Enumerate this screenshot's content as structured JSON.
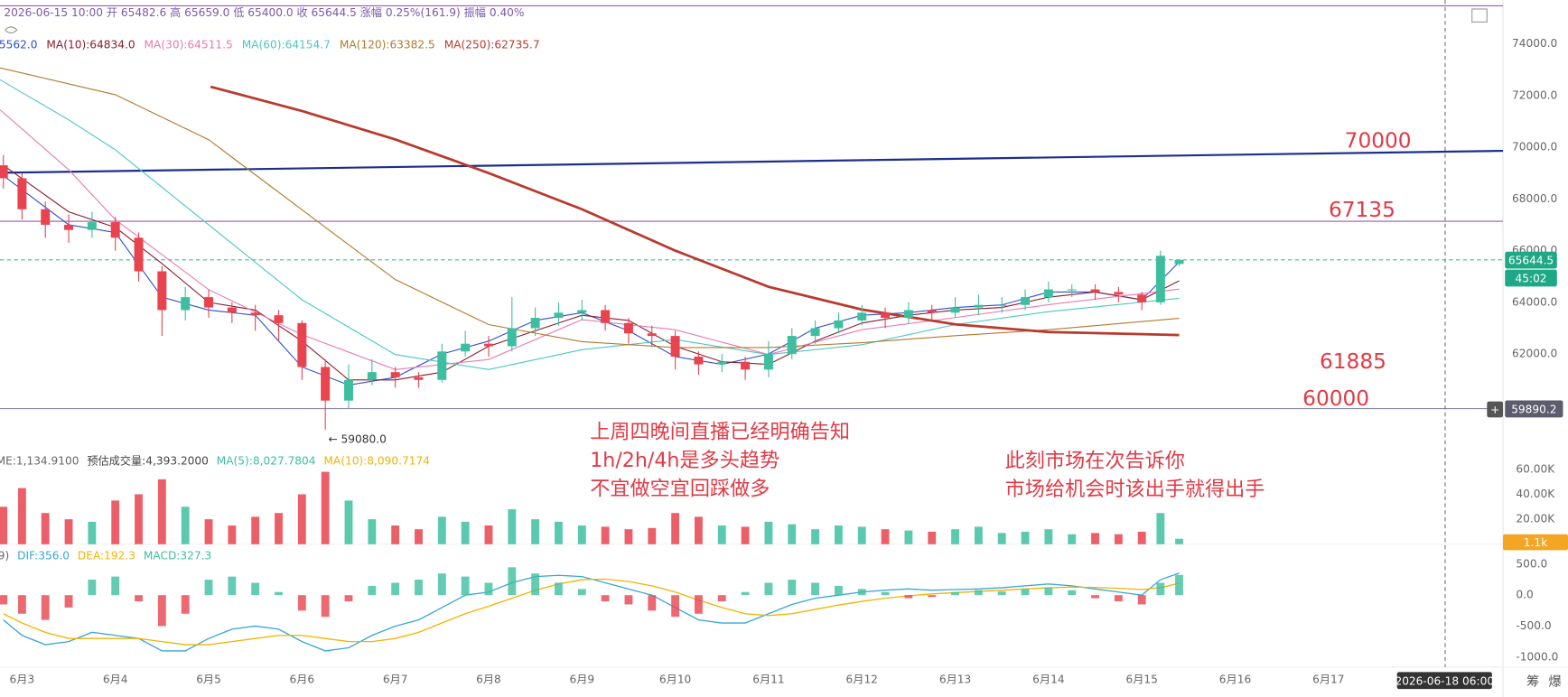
{
  "chart_data": {
    "type": "candlestick",
    "info": "2026-06-15 10:00 开 65482.6 高 65659.0 低 65400.0 收 65644.5 涨幅 0.25%(161.9) 振幅 0.40%",
    "xlim": [
      2.764,
      18.87
    ],
    "xticks": [
      {
        "value": 3,
        "label": "6月3"
      },
      {
        "value": 4,
        "label": "6月4"
      },
      {
        "value": 5,
        "label": "6月5"
      },
      {
        "value": 6,
        "label": "6月6"
      },
      {
        "value": 7,
        "label": "6月7"
      },
      {
        "value": 8,
        "label": "6月8"
      },
      {
        "value": 9,
        "label": "6月9"
      },
      {
        "value": 10,
        "label": "6月10"
      },
      {
        "value": 11,
        "label": "6月11"
      },
      {
        "value": 12,
        "label": "6月12"
      },
      {
        "value": 13,
        "label": "6月13"
      },
      {
        "value": 14,
        "label": "6月14"
      },
      {
        "value": 15,
        "label": "6月15"
      },
      {
        "value": 16,
        "label": "6月16"
      },
      {
        "value": 17,
        "label": "6月17"
      }
    ],
    "ylim": [
      58700,
      75500
    ],
    "yticks": [
      {
        "value": 62000,
        "label": "62000.0"
      },
      {
        "value": 64000,
        "label": "64000.0"
      },
      {
        "value": 66000,
        "label": "66000.0"
      },
      {
        "value": 68000,
        "label": "68000.0"
      },
      {
        "value": 70000,
        "label": "70000.0"
      },
      {
        "value": 72000,
        "label": "72000.0"
      },
      {
        "value": 74000,
        "label": "74000.0"
      }
    ],
    "up_color": "#3dbf9f",
    "down_color": "#e8434f",
    "candles": {
      "x": [
        2.8,
        3,
        3.25,
        3.5,
        3.75,
        4,
        4.25,
        4.5,
        4.75,
        5,
        5.25,
        5.5,
        5.75,
        6,
        6.25,
        6.5,
        6.75,
        7,
        7.25,
        7.5,
        7.75,
        8,
        8.25,
        8.5,
        8.75,
        9,
        9.25,
        9.5,
        9.75,
        10,
        10.25,
        10.5,
        10.75,
        11,
        11.25,
        11.5,
        11.75,
        12,
        12.25,
        12.5,
        12.75,
        13,
        13.25,
        13.5,
        13.75,
        14,
        14.25,
        14.5,
        14.75,
        15,
        15.2,
        15.4
      ],
      "open": [
        69300,
        68800,
        67600,
        67000,
        66800,
        67100,
        66500,
        65200,
        63700,
        64200,
        63800,
        63600,
        63500,
        63200,
        61500,
        60200,
        61000,
        61300,
        61100,
        61000,
        62100,
        62400,
        62300,
        63000,
        63400,
        63600,
        63700,
        63200,
        62800,
        62700,
        61900,
        61600,
        61700,
        61400,
        62000,
        62700,
        63000,
        63300,
        63600,
        63400,
        63700,
        63600,
        63800,
        63900,
        63900,
        64200,
        64500,
        64500,
        64400,
        64300,
        64000,
        65482.6
      ],
      "high": [
        69700,
        69000,
        67900,
        67400,
        67500,
        67300,
        66700,
        65400,
        64600,
        64500,
        64000,
        63900,
        63700,
        63300,
        61800,
        61600,
        61800,
        61500,
        61300,
        62400,
        62900,
        62700,
        64200,
        63800,
        64000,
        64100,
        63900,
        63400,
        63100,
        62900,
        62100,
        62000,
        61900,
        62500,
        63000,
        63300,
        63600,
        63900,
        63800,
        64000,
        63900,
        64200,
        64300,
        64200,
        64500,
        64800,
        64700,
        64700,
        64600,
        64400,
        66000,
        65659
      ],
      "low": [
        68400,
        67200,
        66500,
        66300,
        66500,
        66000,
        64800,
        62700,
        63300,
        63400,
        63200,
        62900,
        62500,
        61000,
        59080,
        59900,
        60800,
        60700,
        60700,
        60900,
        61900,
        61900,
        62100,
        62700,
        63100,
        63300,
        62900,
        62400,
        62300,
        61400,
        61200,
        61300,
        61000,
        61100,
        61800,
        62400,
        62800,
        63100,
        63000,
        63200,
        63300,
        63400,
        63500,
        63600,
        63700,
        64000,
        64200,
        64100,
        64000,
        63700,
        63900,
        65400
      ],
      "close": [
        68800,
        67600,
        67000,
        66800,
        67100,
        66500,
        65200,
        63700,
        64200,
        63800,
        63600,
        63500,
        63200,
        61500,
        60200,
        61000,
        61300,
        61100,
        61000,
        62100,
        62400,
        62300,
        63000,
        63400,
        63600,
        63700,
        63200,
        62800,
        62700,
        61900,
        61600,
        61700,
        61400,
        62000,
        62700,
        63000,
        63300,
        63600,
        63400,
        63700,
        63600,
        63800,
        63900,
        63900,
        64200,
        64500,
        64500,
        64400,
        64300,
        64000,
        65800,
        65644.5
      ]
    },
    "low_label": "← 59080.0",
    "ma": [
      {
        "label": "5562.0",
        "color": "#2c4fd0",
        "width": 1,
        "x": [
          2.8,
          3.5,
          4,
          4.5,
          5,
          5.5,
          6,
          6.5,
          7,
          7.5,
          8,
          8.5,
          9,
          9.5,
          10,
          10.5,
          11,
          11.5,
          12,
          12.5,
          13,
          13.5,
          14,
          14.5,
          15,
          15.4
        ],
        "values": [
          68900,
          67000,
          66700,
          64200,
          63700,
          63500,
          61500,
          60800,
          61100,
          62000,
          62500,
          63300,
          63600,
          62900,
          61900,
          61600,
          62000,
          63000,
          63500,
          63600,
          63800,
          63900,
          64400,
          64400,
          64100,
          65562.0
        ]
      },
      {
        "label": "MA(10):64834.0",
        "color": "#8b1c2c",
        "width": 1,
        "x": [
          2.8,
          3.5,
          4,
          4.5,
          5,
          5.5,
          6,
          6.5,
          7,
          7.5,
          8,
          8.5,
          9,
          9.5,
          10,
          10.5,
          11,
          11.5,
          12,
          12.5,
          13,
          13.5,
          14,
          14.5,
          15,
          15.4
        ],
        "values": [
          69300,
          67500,
          66900,
          65500,
          64000,
          63700,
          62500,
          61000,
          61000,
          61300,
          62300,
          62900,
          63500,
          63300,
          62300,
          61700,
          61600,
          62500,
          63200,
          63500,
          63700,
          63800,
          64200,
          64400,
          64100,
          64834.0
        ]
      },
      {
        "label": "MA(30):64511.5",
        "color": "#e87ab0",
        "width": 1,
        "x": [
          2.764,
          3.5,
          4,
          5,
          6,
          7,
          8,
          9,
          10,
          11,
          12,
          13,
          14,
          15.4
        ],
        "values": [
          71450,
          69130,
          67200,
          64490,
          62750,
          61400,
          61790,
          63330,
          62940,
          61980,
          62940,
          63410,
          63910,
          64511.5
        ]
      },
      {
        "label": "MA(60):64154.7",
        "color": "#4cc6c0",
        "width": 1,
        "x": [
          2.764,
          3.5,
          4,
          5,
          6,
          7,
          8,
          9,
          10,
          11,
          12,
          13,
          14,
          15.4
        ],
        "values": [
          72610,
          71060,
          69900,
          67000,
          64100,
          61980,
          61400,
          62170,
          62560,
          61980,
          62360,
          63140,
          63640,
          64154.7
        ]
      },
      {
        "label": "MA(120):63382.5",
        "color": "#b4782c",
        "width": 1,
        "x": [
          2.764,
          4,
          5,
          6,
          7,
          8,
          9,
          10,
          11,
          12,
          13,
          14,
          15.4
        ],
        "values": [
          73070,
          72030,
          70290,
          67580,
          64880,
          63140,
          62480,
          62250,
          62250,
          62440,
          62710,
          62940,
          63382.5
        ]
      },
      {
        "label": "MA(250):62735.7",
        "color": "#b83a2e",
        "width": 2.5,
        "x": [
          5.02,
          6,
          7,
          8,
          9,
          10,
          11,
          12,
          13,
          14,
          15.4
        ],
        "values": [
          72340,
          71400,
          70300,
          69000,
          67600,
          66000,
          64600,
          63720,
          63150,
          62850,
          62735.7
        ]
      }
    ],
    "trend_line": {
      "color": "#1c2f8c",
      "x": [
        2.764,
        18.87
      ],
      "values": [
        69010,
        69860
      ]
    },
    "levels": [
      {
        "value": 75470,
        "color": "#9b59b6",
        "dash": false
      },
      {
        "value": 67135,
        "color": "#9b59b6",
        "dash": false
      },
      {
        "value": 65644.5,
        "color": "#3dbf9f",
        "dash": true
      },
      {
        "value": 59890.2,
        "color": "#8a8aa8",
        "dash": false
      }
    ],
    "crosshair_x": 18.25,
    "annotations": [
      "70000",
      "67135",
      "61885",
      "60000"
    ],
    "notes": [
      [
        "上周四晚间直播已经明确告知",
        "1h/2h/4h是多头趋势",
        "不宜做空宜回踩做多"
      ],
      [
        "此刻市场在次告诉你",
        "市场给机会时该出手就得出手"
      ]
    ],
    "price_tag": "65644.5",
    "countdown": "45:02",
    "crosshair_price": "59890.2",
    "crosshair_button": "+",
    "crosshair_date": "2026-06-18 06:00",
    "volume": {
      "legend": [
        "ME:1,134.9100",
        "预估成交量:4,393.2000",
        "MA(5):8,027.7804",
        "MA(10):8,090.7174"
      ],
      "ylim": [
        0,
        80000
      ],
      "yticks": [
        {
          "value": 20000,
          "label": "20.00K"
        },
        {
          "value": 40000,
          "label": "40.00K"
        },
        {
          "value": 60000,
          "label": "60.00K"
        }
      ],
      "values": [
        30000,
        45000,
        25000,
        20000,
        18000,
        35000,
        40000,
        52000,
        30000,
        20000,
        15000,
        22000,
        25000,
        40000,
        58000,
        35000,
        20000,
        15000,
        12000,
        22000,
        18000,
        15000,
        28000,
        20000,
        18000,
        15000,
        14000,
        12000,
        13000,
        25000,
        22000,
        15000,
        14000,
        18000,
        16000,
        12000,
        15000,
        14000,
        12000,
        11000,
        10000,
        12000,
        14000,
        9000,
        10000,
        12000,
        8000,
        9000,
        8000,
        10000,
        25000,
        4393.2
      ],
      "tag": "1.1k"
    },
    "macd": {
      "legend": [
        "9)",
        "DIF:356.0",
        "DEA:192.3",
        "MACD:327.3"
      ],
      "ylim": [
        -1500,
        800
      ],
      "yticks": [
        {
          "value": 500,
          "label": "500.0"
        },
        {
          "value": 0,
          "label": "0.0"
        },
        {
          "value": -500,
          "label": "-500.0"
        },
        {
          "value": -1000,
          "label": "-1000.0"
        }
      ],
      "hist": [
        -150,
        -300,
        -400,
        -200,
        250,
        300,
        -100,
        -500,
        -300,
        250,
        300,
        200,
        50,
        -250,
        -350,
        -100,
        150,
        200,
        250,
        350,
        300,
        200,
        450,
        350,
        200,
        100,
        -100,
        -150,
        -250,
        -350,
        -300,
        -100,
        50,
        200,
        250,
        200,
        150,
        100,
        50,
        -50,
        -30,
        50,
        80,
        60,
        100,
        120,
        80,
        -50,
        -100,
        -150,
        200,
        327.3
      ],
      "dif": {
        "color": "#3aa6d8",
        "values": [
          -400,
          -650,
          -800,
          -750,
          -600,
          -650,
          -700,
          -900,
          -900,
          -700,
          -550,
          -500,
          -550,
          -750,
          -900,
          -850,
          -650,
          -500,
          -400,
          -200,
          0,
          50,
          200,
          300,
          320,
          300,
          200,
          100,
          0,
          -200,
          -400,
          -450,
          -450,
          -300,
          -150,
          -50,
          0,
          50,
          80,
          100,
          80,
          90,
          100,
          120,
          150,
          180,
          150,
          100,
          50,
          0,
          250,
          356.0
        ]
      },
      "dea": {
        "color": "#f0b400",
        "values": [
          -300,
          -450,
          -600,
          -700,
          -700,
          -700,
          -700,
          -750,
          -800,
          -800,
          -750,
          -700,
          -650,
          -650,
          -700,
          -750,
          -750,
          -700,
          -600,
          -450,
          -300,
          -180,
          -50,
          80,
          180,
          250,
          260,
          220,
          150,
          50,
          -80,
          -200,
          -300,
          -330,
          -300,
          -230,
          -160,
          -100,
          -50,
          -10,
          20,
          40,
          60,
          80,
          100,
          120,
          130,
          125,
          110,
          90,
          120,
          192.3
        ]
      }
    },
    "side_icons": [
      "筹",
      "爆"
    ]
  }
}
